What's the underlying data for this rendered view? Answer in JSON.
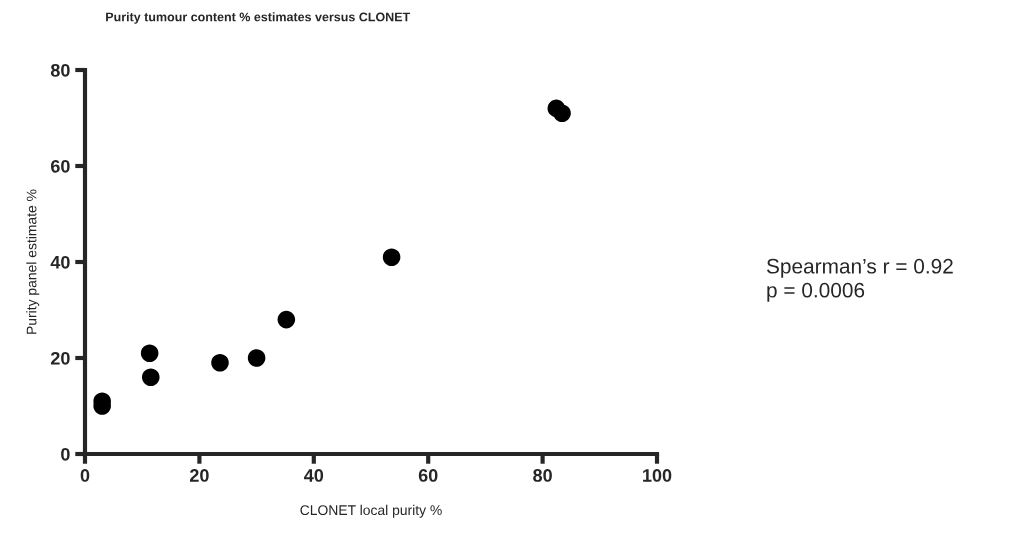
{
  "chart_data": {
    "type": "scatter",
    "title": "Purity tumour content % estimates versus CLONET",
    "xlabel": "CLONET local purity %",
    "ylabel": "Purity panel estimate %",
    "x": [
      3,
      3,
      11.3,
      11.5,
      23.6,
      30,
      35.2,
      53.6,
      82.4,
      83.4
    ],
    "series": [
      {
        "color": "#000000",
        "values": [
          11,
          10,
          21,
          16,
          19,
          20,
          28,
          41,
          72,
          71
        ]
      }
    ],
    "xlim": [
      0,
      100
    ],
    "xticks": [
      0,
      20,
      40,
      60,
      80,
      100
    ],
    "ylim": [
      0,
      80
    ],
    "yticks": [
      0,
      20,
      40,
      60,
      80
    ],
    "marker": "circle",
    "grid": false,
    "annotations": [
      "Spearman’s r = 0.92\np = 0.0006"
    ]
  }
}
